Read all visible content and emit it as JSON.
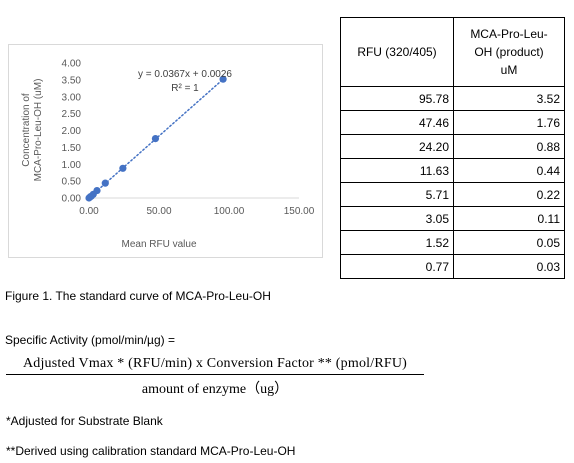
{
  "chart_data": {
    "type": "scatter",
    "x": [
      0.0,
      0.77,
      1.52,
      3.05,
      5.71,
      11.63,
      24.2,
      47.46,
      95.78
    ],
    "y": [
      0.0,
      0.03,
      0.05,
      0.11,
      0.22,
      0.44,
      0.88,
      1.76,
      3.52
    ],
    "xlabel": "Mean RFU value",
    "ylabel": "Concentration of MCA-Pro-Leu-OH (uM)",
    "xlim": [
      0,
      150
    ],
    "ylim": [
      0,
      4
    ],
    "xticks": [
      "0.00",
      "50.00",
      "100.00",
      "150.00"
    ],
    "yticks": [
      "0.00",
      "0.50",
      "1.00",
      "1.50",
      "2.00",
      "2.50",
      "3.00",
      "3.50",
      "4.00"
    ],
    "trendline": {
      "type": "linear",
      "slope": 0.0367,
      "intercept": 0.0026,
      "style": "dotted"
    },
    "equation": "y = 0.0367x + 0.0026",
    "r_squared": "R² = 1",
    "grid": false,
    "marker_color": "#4472c4"
  },
  "table": {
    "headers": [
      "RFU (320/405)",
      [
        "MCA-Pro-Leu-",
        "OH (product)",
        "uM"
      ]
    ],
    "rows": [
      [
        "95.78",
        "3.52"
      ],
      [
        "47.46",
        "1.76"
      ],
      [
        "24.20",
        "0.88"
      ],
      [
        "11.63",
        "0.44"
      ],
      [
        "5.71",
        "0.22"
      ],
      [
        "3.05",
        "0.11"
      ],
      [
        "1.52",
        "0.05"
      ],
      [
        "0.77",
        "0.03"
      ]
    ]
  },
  "caption": "Figure 1. The standard curve of MCA-Pro-Leu-OH",
  "activity_label": "Specific Activity (pmol/min/µg) =",
  "formula": {
    "numerator": "Adjusted Vmax * (RFU/min)  x Conversion  Factor ** (pmol/RFU)",
    "denominator": "amount  of enzyme（ug）"
  },
  "footnotes": [
    "*Adjusted for Substrate Blank",
    "**Derived using calibration standard MCA-Pro-Leu-OH"
  ]
}
